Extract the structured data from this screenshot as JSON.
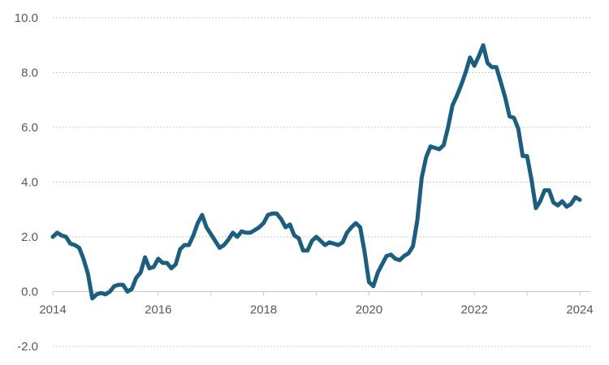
{
  "chart_data": {
    "type": "line",
    "title": "",
    "xlabel": "",
    "ylabel": "",
    "ylim": [
      -2.0,
      10.0
    ],
    "xlim": [
      2014.0,
      2024.2
    ],
    "grid": true,
    "y_ticks": [
      -2.0,
      0.0,
      2.0,
      4.0,
      6.0,
      8.0,
      10.0
    ],
    "y_tick_labels": [
      "-2.0",
      "0.0",
      "2.0",
      "4.0",
      "6.0",
      "8.0",
      "10.0"
    ],
    "x_ticks": [
      2014,
      2016,
      2018,
      2020,
      2022,
      2024
    ],
    "x_tick_labels": [
      "2014",
      "2016",
      "2018",
      "2020",
      "2022",
      "2024"
    ],
    "colors": {
      "line": "#1b5e7e",
      "grid": "#c8c8c8",
      "text": "#595959"
    },
    "series": [
      {
        "x": [
          2014.0,
          2014.083,
          2014.167,
          2014.25,
          2014.333,
          2014.417,
          2014.5,
          2014.583,
          2014.667,
          2014.75,
          2014.833,
          2014.917,
          2015.0,
          2015.083,
          2015.167,
          2015.25,
          2015.333,
          2015.417,
          2015.5,
          2015.583,
          2015.667,
          2015.75,
          2015.833,
          2015.917,
          2016.0,
          2016.083,
          2016.167,
          2016.25,
          2016.333,
          2016.417,
          2016.5,
          2016.583,
          2016.667,
          2016.75,
          2016.833,
          2016.917,
          2017.0,
          2017.083,
          2017.167,
          2017.25,
          2017.333,
          2017.417,
          2017.5,
          2017.583,
          2017.667,
          2017.75,
          2017.833,
          2017.917,
          2018.0,
          2018.083,
          2018.167,
          2018.25,
          2018.333,
          2018.417,
          2018.5,
          2018.583,
          2018.667,
          2018.75,
          2018.833,
          2018.917,
          2019.0,
          2019.083,
          2019.167,
          2019.25,
          2019.333,
          2019.417,
          2019.5,
          2019.583,
          2019.667,
          2019.75,
          2019.833,
          2019.917,
          2020.0,
          2020.083,
          2020.167,
          2020.25,
          2020.333,
          2020.417,
          2020.5,
          2020.583,
          2020.667,
          2020.75,
          2020.833,
          2020.917,
          2021.0,
          2021.083,
          2021.167,
          2021.25,
          2021.333,
          2021.417,
          2021.5,
          2021.583,
          2021.667,
          2021.75,
          2021.833,
          2021.917,
          2022.0,
          2022.083,
          2022.167,
          2022.25,
          2022.333,
          2022.417,
          2022.5,
          2022.583,
          2022.667,
          2022.75,
          2022.833,
          2022.917,
          2023.0,
          2023.083,
          2023.167,
          2023.25,
          2023.333,
          2023.417,
          2023.5,
          2023.583,
          2023.667,
          2023.75,
          2023.833,
          2023.917,
          2024.0
        ],
        "values": [
          2.0,
          2.15,
          2.05,
          2.0,
          1.75,
          1.7,
          1.6,
          1.2,
          0.65,
          -0.25,
          -0.1,
          -0.05,
          -0.1,
          0.0,
          0.2,
          0.25,
          0.25,
          0.0,
          0.1,
          0.5,
          0.7,
          1.25,
          0.85,
          0.9,
          1.2,
          1.05,
          1.05,
          0.85,
          1.0,
          1.55,
          1.7,
          1.7,
          2.05,
          2.5,
          2.8,
          2.35,
          2.1,
          1.85,
          1.6,
          1.7,
          1.9,
          2.15,
          2.0,
          2.2,
          2.15,
          2.15,
          2.25,
          2.35,
          2.5,
          2.8,
          2.85,
          2.85,
          2.65,
          2.35,
          2.45,
          2.05,
          1.95,
          1.5,
          1.5,
          1.85,
          2.0,
          1.85,
          1.7,
          1.8,
          1.75,
          1.7,
          1.8,
          2.15,
          2.35,
          2.5,
          2.35,
          1.45,
          0.35,
          0.2,
          0.7,
          1.0,
          1.3,
          1.35,
          1.2,
          1.15,
          1.3,
          1.4,
          1.65,
          2.6,
          4.15,
          4.9,
          5.3,
          5.25,
          5.2,
          5.35,
          6.0,
          6.8,
          7.15,
          7.55,
          8.0,
          8.55,
          8.25,
          8.6,
          9.0,
          8.35,
          8.2,
          8.2,
          7.65,
          7.1,
          6.4,
          6.35,
          5.95,
          4.95,
          4.95,
          4.1,
          3.05,
          3.3,
          3.7,
          3.7,
          3.25,
          3.15,
          3.3,
          3.1,
          3.2,
          3.45,
          3.35
        ]
      }
    ]
  }
}
